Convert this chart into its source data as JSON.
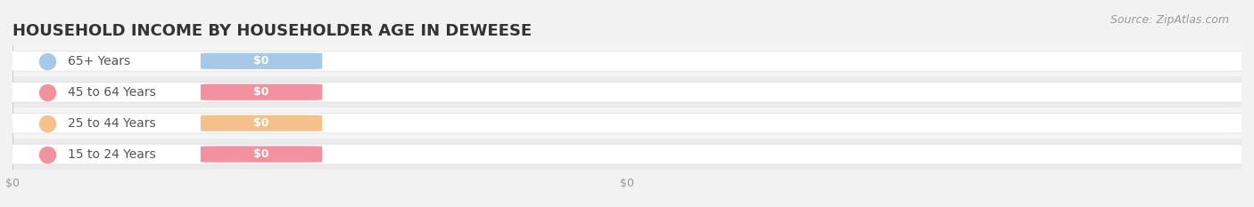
{
  "title": "HOUSEHOLD INCOME BY HOUSEHOLDER AGE IN DEWEESE",
  "source": "Source: ZipAtlas.com",
  "categories": [
    "15 to 24 Years",
    "25 to 44 Years",
    "45 to 64 Years",
    "65+ Years"
  ],
  "values": [
    0,
    0,
    0,
    0
  ],
  "bar_colors": [
    "#f2919f",
    "#f5c18a",
    "#f2919f",
    "#a8c8e8"
  ],
  "bg_color": "#f2f2f2",
  "row_bg_colors": [
    "#ebebeb",
    "#f5f5f5"
  ],
  "bar_bg_color": "#ffffff",
  "title_fontsize": 13,
  "source_fontsize": 9,
  "tick_fontsize": 9,
  "bar_height": 0.62
}
